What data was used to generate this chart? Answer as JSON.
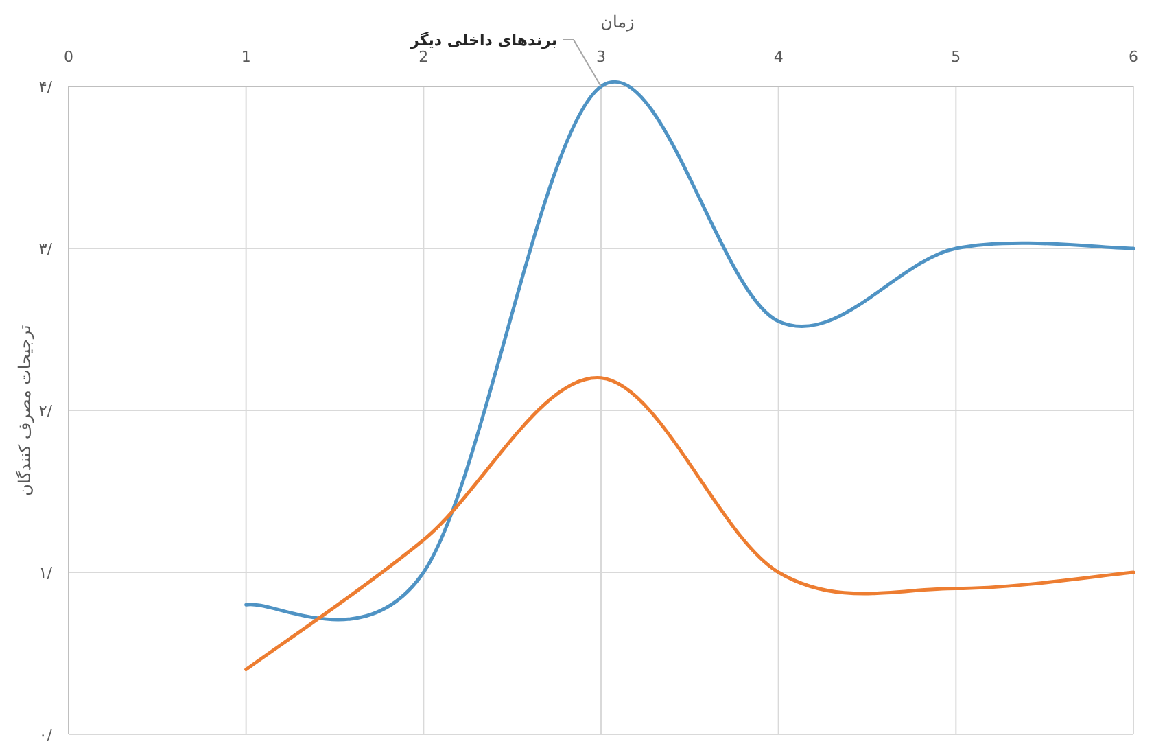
{
  "chart_data": {
    "type": "line",
    "xlabel": "زمان",
    "ylabel": "ترجیحات مصرف کنندگان",
    "x": [
      1,
      2,
      3,
      4,
      5,
      6
    ],
    "series": [
      {
        "name": "برندهای داخلی دیگر",
        "color": "#4f93c4",
        "values": [
          0.8,
          1.0,
          4.0,
          2.55,
          3.0,
          3.0
        ]
      },
      {
        "color": "#ed7d31",
        "values": [
          0.4,
          1.2,
          2.2,
          1.0,
          0.9,
          1.0
        ]
      }
    ],
    "xlim": [
      0,
      6
    ],
    "xticks": [
      0,
      1,
      2,
      3,
      4,
      5,
      6
    ],
    "ylim": [
      0,
      4
    ],
    "yticks": [
      {
        "value": 0,
        "label": "۰/"
      },
      {
        "value": 1,
        "label": "۱/"
      },
      {
        "value": 2,
        "label": "۲/"
      },
      {
        "value": 3,
        "label": "۳/"
      },
      {
        "value": 4,
        "label": "۴/"
      }
    ],
    "grid": true
  }
}
